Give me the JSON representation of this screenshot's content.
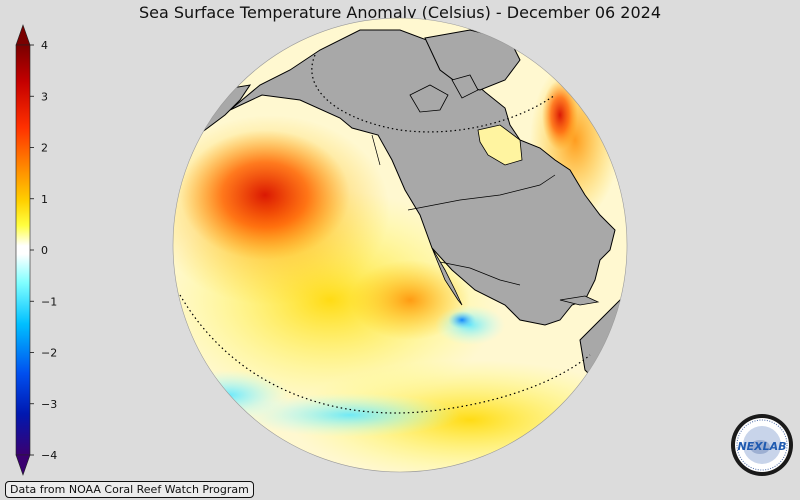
{
  "title": "Sea Surface Temperature Anomaly (Celsius) - December 06 2024",
  "colorbar": {
    "ticks": [
      "4",
      "3",
      "2",
      "1",
      "0",
      "−1",
      "−2",
      "−3",
      "−4"
    ],
    "colors": [
      "#7a0000",
      "#c80000",
      "#ff3a00",
      "#ff8c00",
      "#ffc800",
      "#ffff40",
      "#ffffff",
      "#ffffff",
      "#80ffff",
      "#00c8ff",
      "#0064ff",
      "#0020c0",
      "#3a0070"
    ]
  },
  "credit": "Data from NOAA Coral Reef Watch Program",
  "logo": {
    "text": "NEXLAB"
  },
  "colors": {
    "land": "#a8a8a8",
    "background": "#dcdcdc"
  }
}
